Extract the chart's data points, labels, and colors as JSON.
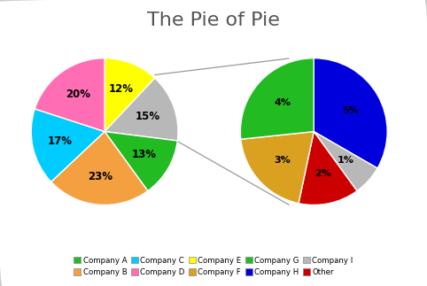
{
  "title": "The Pie of Pie",
  "main_labels": [
    "Company E",
    "Other",
    "Company A",
    "Company B",
    "Company C",
    "Company D"
  ],
  "main_values": [
    12,
    15,
    13,
    23,
    17,
    20
  ],
  "main_colors": [
    "#ffff00",
    "#b8b8b8",
    "#22bb22",
    "#f5a040",
    "#00ccff",
    "#ff6eb4"
  ],
  "main_pct": [
    "12%",
    "15%",
    "13%",
    "23%",
    "17%",
    "20%"
  ],
  "sub_labels": [
    "Company H",
    "Company I",
    "Other",
    "Company F",
    "Company G"
  ],
  "sub_values": [
    5,
    1,
    2,
    3,
    4
  ],
  "sub_colors": [
    "#0000dd",
    "#b8b8b8",
    "#cc0000",
    "#daa020",
    "#22bb22"
  ],
  "sub_pct": [
    "5%",
    "1%",
    "2%",
    "3%",
    "4%"
  ],
  "legend_labels": [
    "Company A",
    "Company B",
    "Company C",
    "Company D",
    "Company E",
    "Company F",
    "Company G",
    "Company H",
    "Company I",
    "Other"
  ],
  "legend_colors": [
    "#22bb22",
    "#f5a040",
    "#00ccff",
    "#ff6eb4",
    "#ffff00",
    "#daa020",
    "#22bb22",
    "#0000dd",
    "#b8b8b8",
    "#cc0000"
  ],
  "bg_color": "#ffffff",
  "title_fontsize": 16
}
